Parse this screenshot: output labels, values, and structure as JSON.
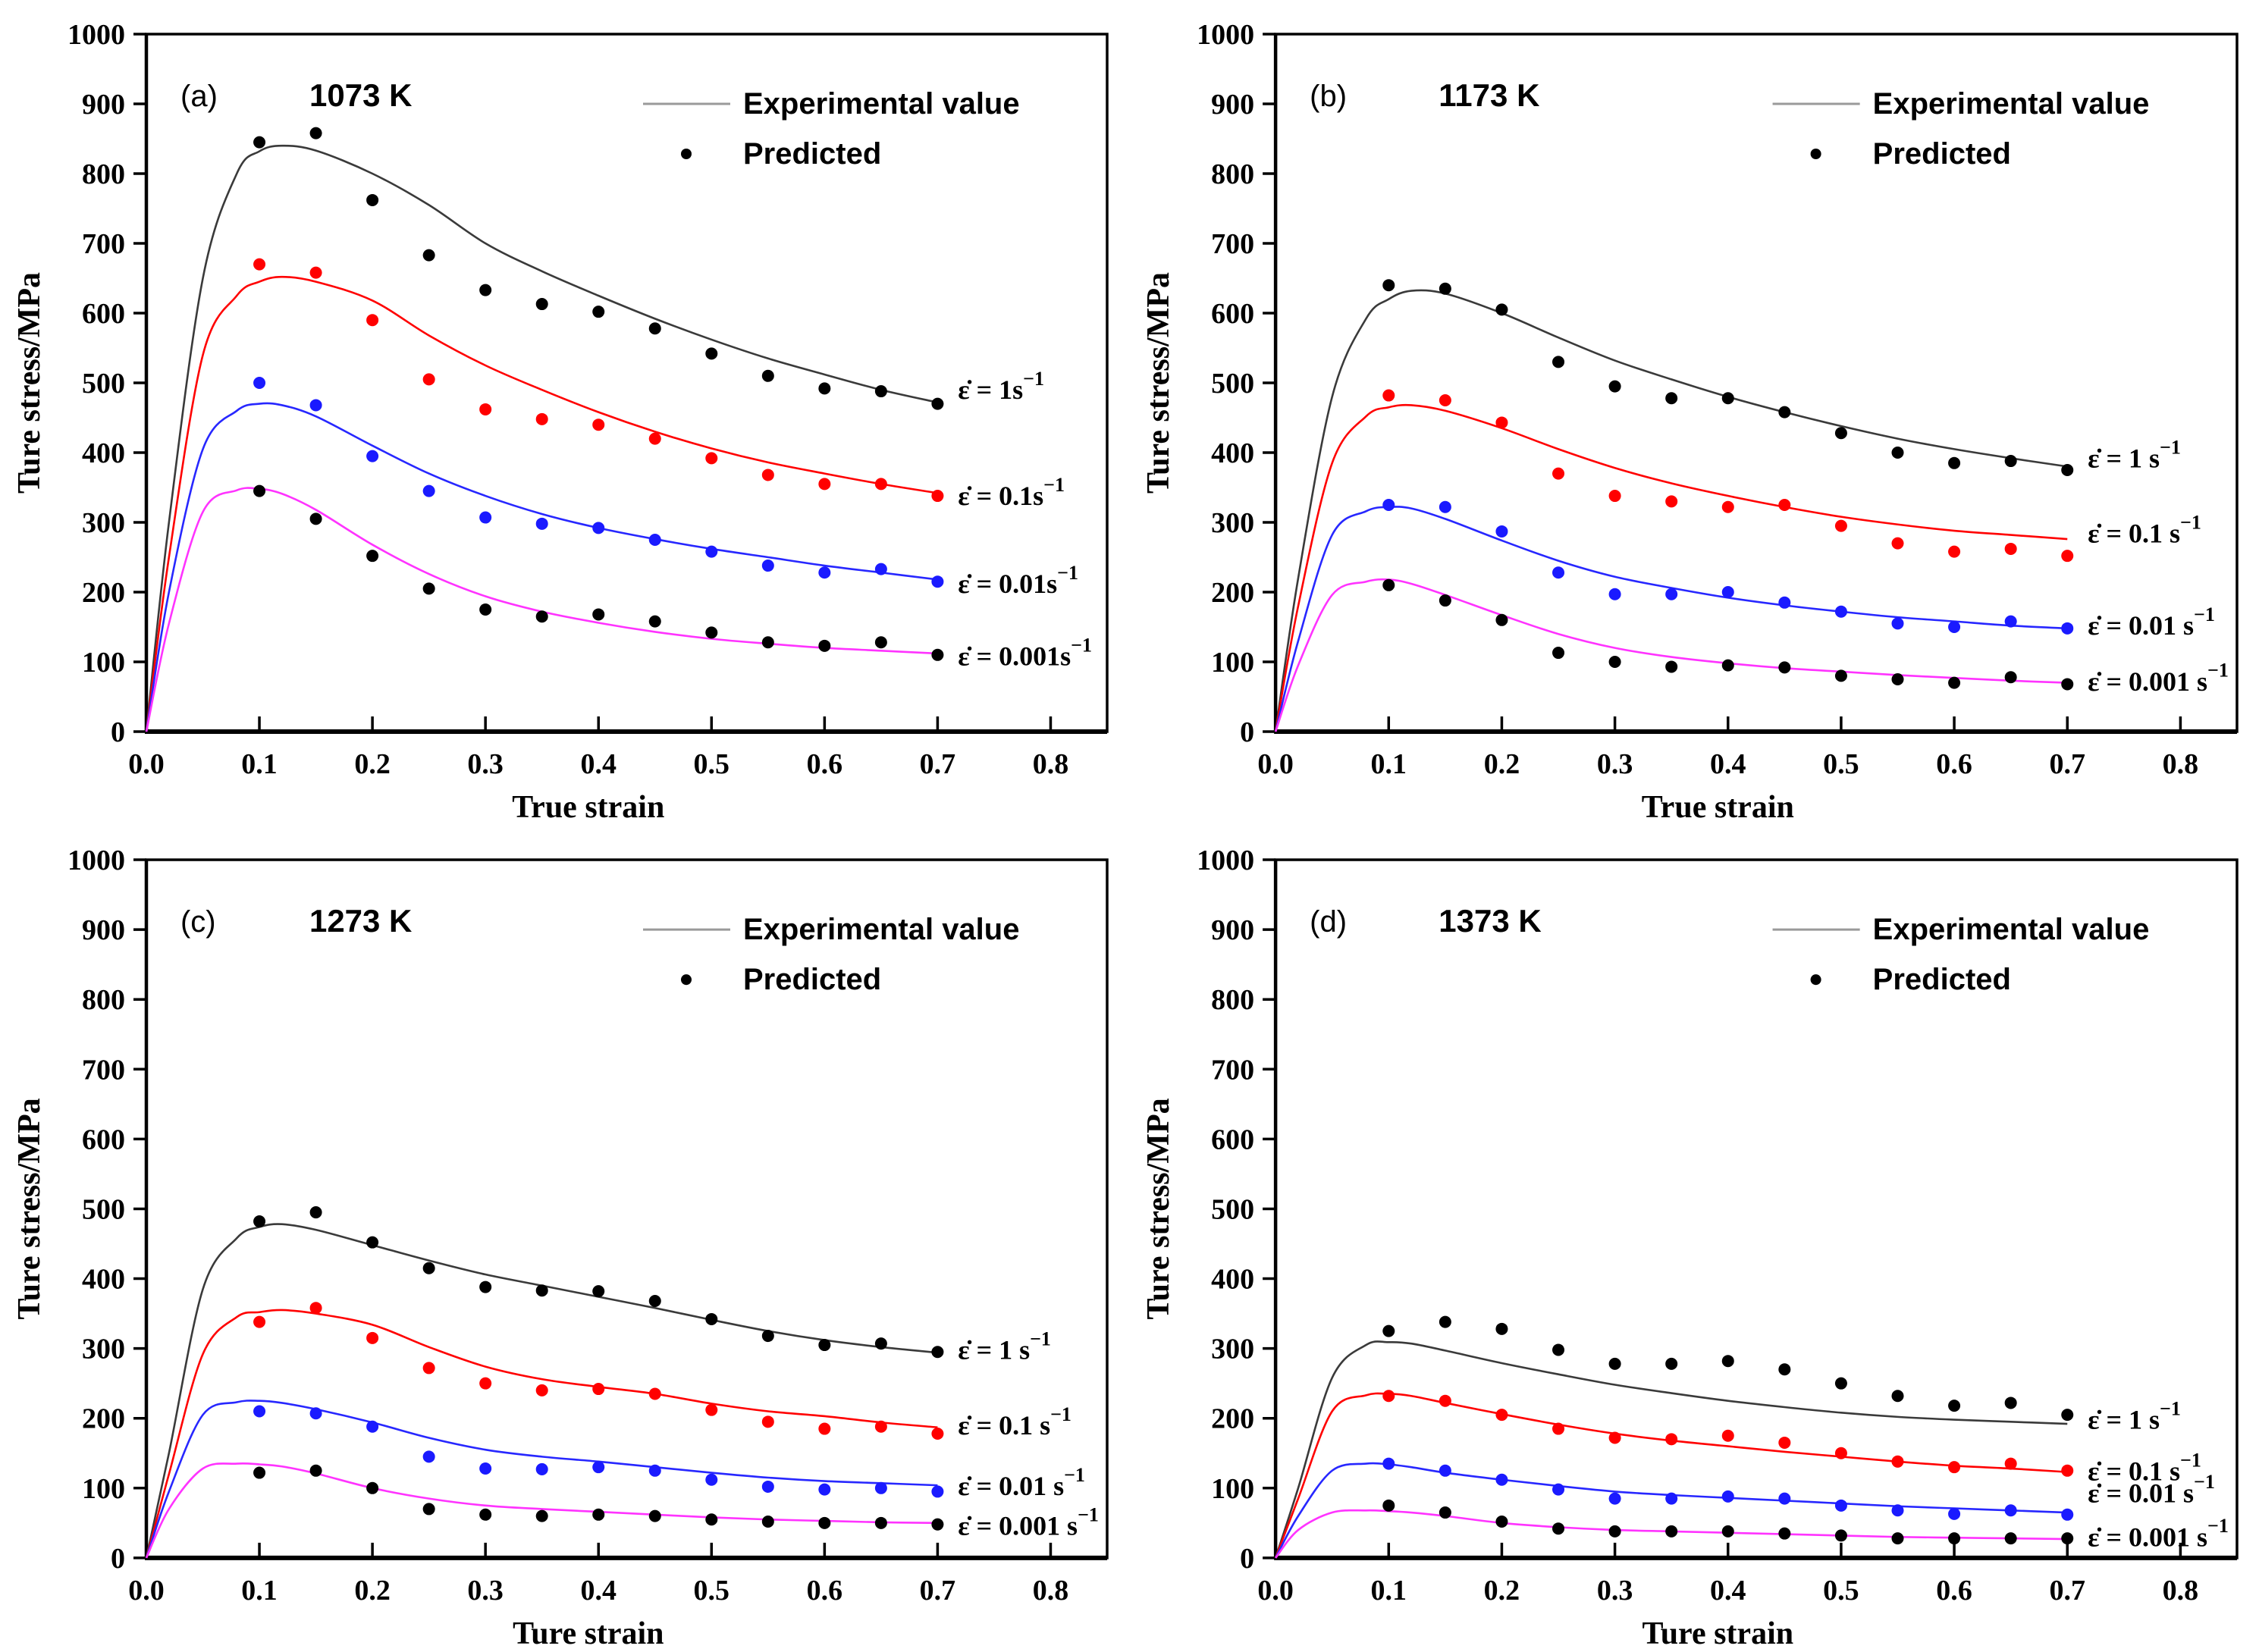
{
  "figure": {
    "legend": {
      "line_label": "Experimental value",
      "dot_label": "Predicted"
    },
    "colors": {
      "black_line": "#3a3a3a",
      "red_line": "#ff0000",
      "blue_line": "#2727ff",
      "magenta_line": "#ff33ff",
      "black_dot": "#000000",
      "red_dot": "#ff0000",
      "blue_dot": "#1a1aff",
      "legend_line": "#9a9a9a",
      "axis": "#000000"
    },
    "sup_text": "−1"
  },
  "chart_data": [
    {
      "id": "a",
      "type": "line+scatter",
      "panel_label": "(a)",
      "title": "1073 K",
      "xlabel": "True strain",
      "ylabel": "Ture stress/MPa",
      "xlim": [
        0,
        0.85
      ],
      "ylim": [
        0,
        1000
      ],
      "xticks": [
        "0.0",
        "0.1",
        "0.2",
        "0.3",
        "0.4",
        "0.5",
        "0.6",
        "0.7",
        "0.8"
      ],
      "yticks": [
        0,
        100,
        200,
        300,
        400,
        500,
        600,
        700,
        800,
        900,
        1000
      ],
      "line_x": [
        0,
        0.02,
        0.05,
        0.08,
        0.1,
        0.12,
        0.15,
        0.2,
        0.25,
        0.3,
        0.35,
        0.4,
        0.45,
        0.5,
        0.55,
        0.6,
        0.65,
        0.7
      ],
      "dot_x": [
        0.1,
        0.15,
        0.2,
        0.25,
        0.3,
        0.35,
        0.4,
        0.45,
        0.5,
        0.55,
        0.6,
        0.65,
        0.7
      ],
      "series": [
        {
          "name": "rate-1",
          "rate_label": "ε̇ = 1s",
          "label_y": 490,
          "line_color": "#3a3a3a",
          "dot_color": "#000000",
          "line_y": [
            0,
            300,
            650,
            800,
            832,
            840,
            833,
            800,
            755,
            700,
            660,
            625,
            592,
            562,
            535,
            512,
            490,
            472
          ],
          "dot_y": [
            845,
            858,
            762,
            683,
            633,
            613,
            602,
            578,
            542,
            510,
            492,
            488,
            470
          ]
        },
        {
          "name": "rate-0.1",
          "rate_label": "ε̇ = 0.1s",
          "label_y": 338,
          "line_color": "#ff0000",
          "dot_color": "#ff0000",
          "line_y": [
            0,
            250,
            540,
            625,
            645,
            652,
            645,
            618,
            568,
            525,
            490,
            458,
            430,
            406,
            386,
            370,
            355,
            342
          ],
          "dot_y": [
            670,
            658,
            590,
            505,
            462,
            448,
            440,
            420,
            392,
            368,
            355,
            355,
            338
          ]
        },
        {
          "name": "rate-0.01",
          "rate_label": "ε̇ = 0.01s",
          "label_y": 212,
          "line_color": "#2727ff",
          "dot_color": "#1a1aff",
          "line_y": [
            0,
            200,
            405,
            460,
            470,
            468,
            452,
            410,
            370,
            338,
            312,
            292,
            276,
            262,
            250,
            238,
            228,
            218
          ],
          "dot_y": [
            500,
            468,
            395,
            345,
            307,
            298,
            292,
            275,
            258,
            238,
            228,
            233,
            215
          ]
        },
        {
          "name": "rate-0.001",
          "rate_label": "ε̇ = 0.001s",
          "label_y": 108,
          "line_color": "#ff33ff",
          "dot_color": "#000000",
          "line_y": [
            0,
            155,
            315,
            346,
            348,
            341,
            318,
            268,
            226,
            194,
            172,
            156,
            143,
            133,
            126,
            120,
            116,
            112
          ],
          "dot_y": [
            345,
            305,
            252,
            205,
            175,
            165,
            168,
            158,
            142,
            128,
            123,
            128,
            110
          ]
        }
      ]
    },
    {
      "id": "b",
      "type": "line+scatter",
      "panel_label": "(b)",
      "title": "1173 K",
      "xlabel": "True strain",
      "ylabel": "Ture stress/MPa",
      "xlim": [
        0,
        0.85
      ],
      "ylim": [
        0,
        1000
      ],
      "xticks": [
        "0.0",
        "0.1",
        "0.2",
        "0.3",
        "0.4",
        "0.5",
        "0.6",
        "0.7",
        "0.8"
      ],
      "yticks": [
        0,
        100,
        200,
        300,
        400,
        500,
        600,
        700,
        800,
        900,
        1000
      ],
      "line_x": [
        0,
        0.02,
        0.05,
        0.08,
        0.1,
        0.12,
        0.15,
        0.2,
        0.25,
        0.3,
        0.35,
        0.4,
        0.45,
        0.5,
        0.55,
        0.6,
        0.65,
        0.7
      ],
      "dot_x": [
        0.1,
        0.15,
        0.2,
        0.25,
        0.3,
        0.35,
        0.4,
        0.45,
        0.5,
        0.55,
        0.6,
        0.65,
        0.7
      ],
      "series": [
        {
          "name": "rate-1",
          "rate_label": "ε̇ = 1 s",
          "label_y": 392,
          "line_color": "#3a3a3a",
          "dot_color": "#000000",
          "line_y": [
            0,
            220,
            480,
            592,
            620,
            632,
            628,
            600,
            565,
            532,
            505,
            480,
            458,
            438,
            420,
            405,
            392,
            380
          ],
          "dot_y": [
            640,
            635,
            605,
            530,
            495,
            478,
            478,
            458,
            428,
            400,
            385,
            388,
            375
          ]
        },
        {
          "name": "rate-0.1",
          "rate_label": "ε̇ = 0.1 s",
          "label_y": 284,
          "line_color": "#ff0000",
          "dot_color": "#ff0000",
          "line_y": [
            0,
            180,
            385,
            452,
            465,
            468,
            460,
            435,
            405,
            378,
            356,
            338,
            322,
            308,
            297,
            288,
            282,
            276
          ],
          "dot_y": [
            482,
            475,
            443,
            370,
            338,
            330,
            322,
            325,
            295,
            270,
            258,
            262,
            252
          ]
        },
        {
          "name": "rate-0.01",
          "rate_label": "ε̇ = 0.01 s",
          "label_y": 152,
          "line_color": "#2727ff",
          "dot_color": "#1a1aff",
          "line_y": [
            0,
            130,
            282,
            316,
            322,
            320,
            305,
            274,
            245,
            222,
            206,
            192,
            181,
            172,
            164,
            158,
            152,
            148
          ],
          "dot_y": [
            325,
            322,
            287,
            228,
            197,
            197,
            200,
            185,
            172,
            155,
            150,
            158,
            148
          ]
        },
        {
          "name": "rate-0.001",
          "rate_label": "ε̇ = 0.001 s",
          "label_y": 72,
          "line_color": "#ff33ff",
          "dot_color": "#000000",
          "line_y": [
            0,
            95,
            196,
            215,
            218,
            212,
            196,
            167,
            140,
            120,
            107,
            98,
            91,
            86,
            81,
            77,
            73,
            70
          ],
          "dot_y": [
            210,
            188,
            160,
            113,
            100,
            93,
            95,
            92,
            80,
            75,
            70,
            78,
            68
          ]
        }
      ]
    },
    {
      "id": "c",
      "type": "line+scatter",
      "panel_label": "(c)",
      "title": "1273 K",
      "xlabel": "Ture strain",
      "ylabel": "Ture stress/MPa",
      "xlim": [
        0,
        0.85
      ],
      "ylim": [
        0,
        1000
      ],
      "xticks": [
        "0.0",
        "0.1",
        "0.2",
        "0.3",
        "0.4",
        "0.5",
        "0.6",
        "0.7",
        "0.8"
      ],
      "yticks": [
        0,
        100,
        200,
        300,
        400,
        500,
        600,
        700,
        800,
        900,
        1000
      ],
      "line_x": [
        0,
        0.02,
        0.05,
        0.08,
        0.1,
        0.12,
        0.15,
        0.2,
        0.25,
        0.3,
        0.35,
        0.4,
        0.45,
        0.5,
        0.55,
        0.6,
        0.65,
        0.7
      ],
      "dot_x": [
        0.1,
        0.15,
        0.2,
        0.25,
        0.3,
        0.35,
        0.4,
        0.45,
        0.5,
        0.55,
        0.6,
        0.65,
        0.7
      ],
      "series": [
        {
          "name": "rate-1",
          "rate_label": "ε̇ = 1 s",
          "label_y": 298,
          "line_color": "#3a3a3a",
          "dot_color": "#000000",
          "line_y": [
            0,
            150,
            385,
            458,
            474,
            478,
            470,
            448,
            426,
            406,
            390,
            374,
            358,
            341,
            325,
            312,
            302,
            294
          ],
          "dot_y": [
            482,
            495,
            452,
            415,
            388,
            383,
            382,
            368,
            342,
            318,
            305,
            307,
            295
          ]
        },
        {
          "name": "rate-0.1",
          "rate_label": "ε̇ = 0.1 s",
          "label_y": 190,
          "line_color": "#ff0000",
          "dot_color": "#ff0000",
          "line_y": [
            0,
            120,
            292,
            345,
            352,
            355,
            350,
            334,
            302,
            274,
            256,
            245,
            235,
            221,
            210,
            203,
            194,
            187
          ],
          "dot_y": [
            338,
            358,
            315,
            272,
            250,
            240,
            242,
            235,
            212,
            195,
            185,
            188,
            178
          ]
        },
        {
          "name": "rate-0.01",
          "rate_label": "ε̇ = 0.01 s",
          "label_y": 103,
          "line_color": "#2727ff",
          "dot_color": "#1a1aff",
          "line_y": [
            0,
            95,
            205,
            223,
            225,
            222,
            213,
            194,
            172,
            155,
            145,
            138,
            130,
            122,
            115,
            110,
            107,
            104
          ],
          "dot_y": [
            210,
            207,
            188,
            145,
            128,
            127,
            130,
            125,
            112,
            102,
            98,
            100,
            95
          ]
        },
        {
          "name": "rate-0.001",
          "rate_label": "ε̇ = 0.001 s",
          "label_y": 46,
          "line_color": "#ff33ff",
          "dot_color": "#000000",
          "line_y": [
            0,
            70,
            128,
            135,
            134,
            131,
            121,
            100,
            85,
            75,
            70,
            66,
            62,
            58,
            55,
            53,
            51,
            50
          ],
          "dot_y": [
            122,
            125,
            100,
            70,
            62,
            60,
            62,
            60,
            55,
            52,
            50,
            50,
            48
          ]
        }
      ]
    },
    {
      "id": "d",
      "type": "line+scatter",
      "panel_label": "(d)",
      "title": "1373 K",
      "xlabel": "Ture strain",
      "ylabel": "Ture stress/MPa",
      "xlim": [
        0,
        0.85
      ],
      "ylim": [
        0,
        1000
      ],
      "xticks": [
        "0.0",
        "0.1",
        "0.2",
        "0.3",
        "0.4",
        "0.5",
        "0.6",
        "0.7",
        "0.8"
      ],
      "yticks": [
        0,
        100,
        200,
        300,
        400,
        500,
        600,
        700,
        800,
        900,
        1000
      ],
      "line_x": [
        0,
        0.02,
        0.05,
        0.08,
        0.1,
        0.12,
        0.15,
        0.2,
        0.25,
        0.3,
        0.35,
        0.4,
        0.45,
        0.5,
        0.55,
        0.6,
        0.65,
        0.7
      ],
      "dot_x": [
        0.1,
        0.15,
        0.2,
        0.25,
        0.3,
        0.35,
        0.4,
        0.45,
        0.5,
        0.55,
        0.6,
        0.65,
        0.7
      ],
      "series": [
        {
          "name": "rate-1",
          "rate_label": "ε̇ = 1 s",
          "label_y": 198,
          "line_color": "#3a3a3a",
          "dot_color": "#000000",
          "line_y": [
            0,
            100,
            258,
            305,
            309,
            307,
            297,
            279,
            263,
            248,
            236,
            225,
            216,
            208,
            202,
            198,
            195,
            192
          ],
          "dot_y": [
            325,
            338,
            328,
            298,
            278,
            278,
            282,
            270,
            250,
            232,
            218,
            222,
            205
          ]
        },
        {
          "name": "rate-0.1",
          "rate_label": "ε̇ = 0.1 s",
          "label_y": 124,
          "line_color": "#ff0000",
          "dot_color": "#ff0000",
          "line_y": [
            0,
            85,
            210,
            233,
            235,
            232,
            222,
            206,
            191,
            178,
            168,
            160,
            152,
            145,
            138,
            132,
            128,
            123
          ],
          "dot_y": [
            232,
            225,
            205,
            185,
            172,
            170,
            175,
            165,
            150,
            138,
            130,
            135,
            125
          ]
        },
        {
          "name": "rate-0.01",
          "rate_label": "ε̇ = 0.01 s",
          "label_y": 93,
          "line_color": "#2727ff",
          "dot_color": "#1a1aff",
          "line_y": [
            0,
            60,
            125,
            135,
            134,
            130,
            122,
            112,
            103,
            95,
            90,
            86,
            82,
            78,
            74,
            71,
            68,
            65
          ],
          "dot_y": [
            135,
            125,
            112,
            98,
            85,
            85,
            88,
            85,
            75,
            68,
            63,
            68,
            62
          ]
        },
        {
          "name": "rate-0.001",
          "rate_label": "ε̇ = 0.001 s",
          "label_y": 30,
          "line_color": "#ff33ff",
          "dot_color": "#000000",
          "line_y": [
            0,
            40,
            65,
            68,
            67,
            65,
            60,
            50,
            44,
            40,
            38,
            36,
            34,
            32,
            30,
            29,
            28,
            27
          ],
          "dot_y": [
            75,
            65,
            52,
            42,
            38,
            38,
            38,
            35,
            32,
            28,
            28,
            28,
            28
          ]
        }
      ]
    }
  ]
}
